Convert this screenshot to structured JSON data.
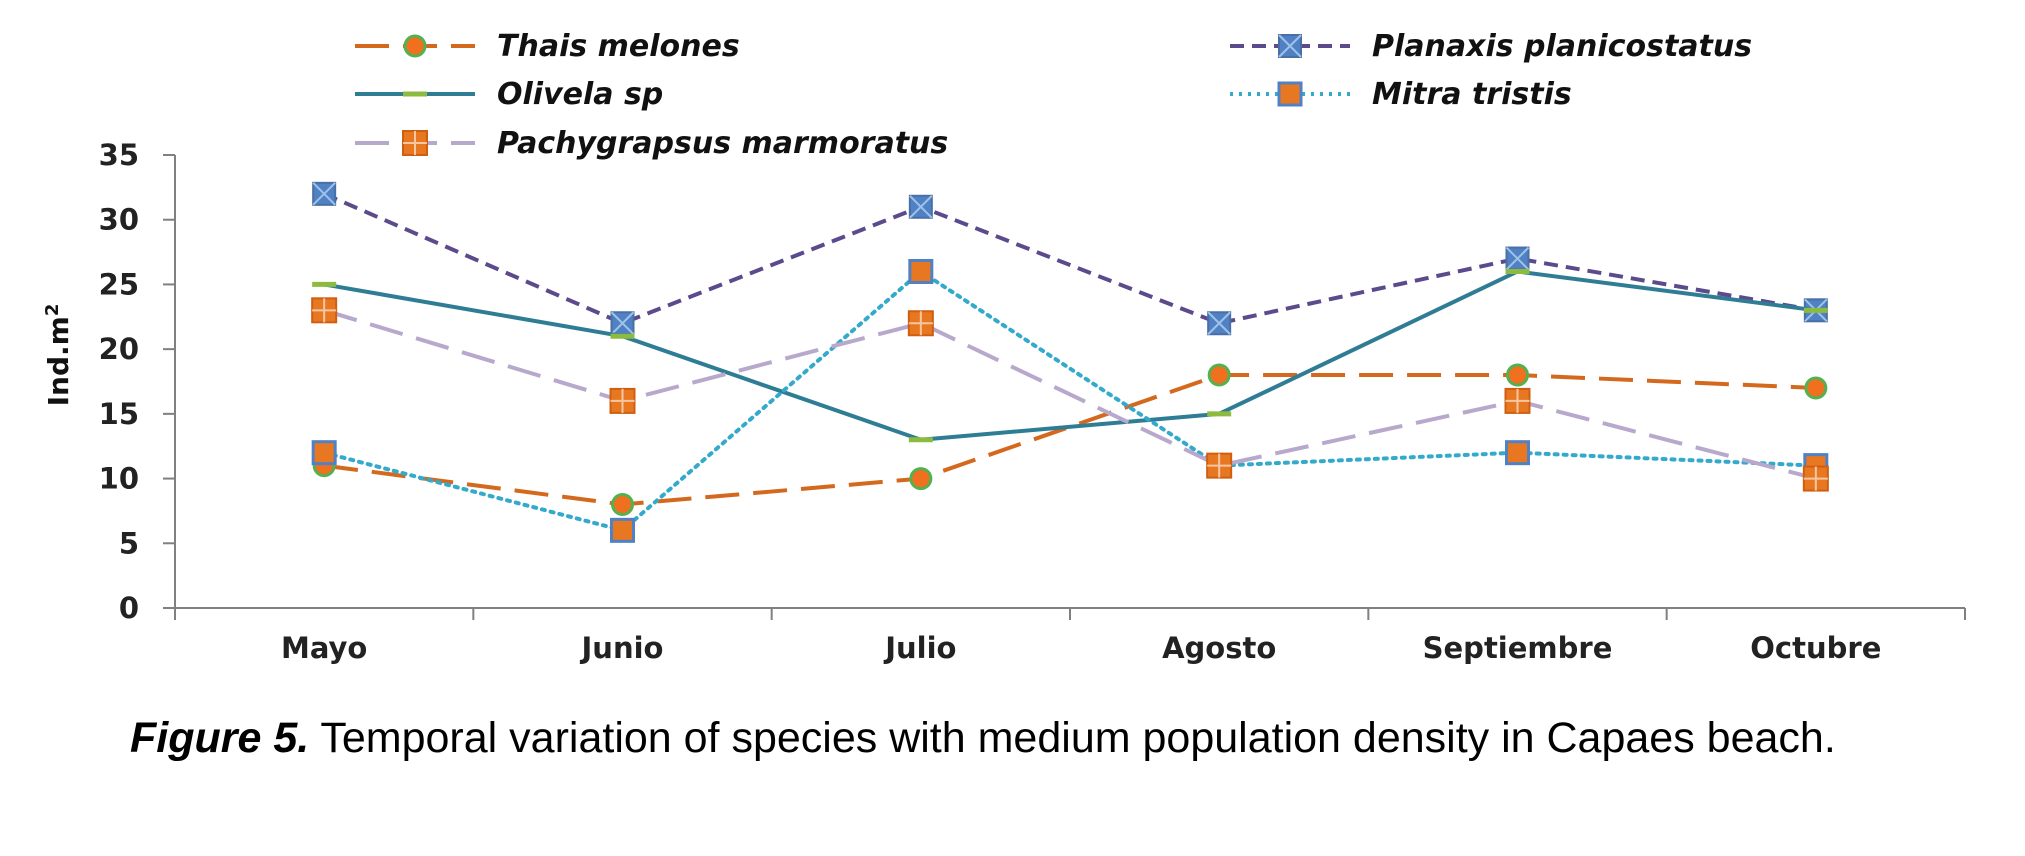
{
  "chart_data": {
    "type": "line",
    "title": "",
    "xlabel": "",
    "ylabel": "Ind.m2",
    "ylabel_main": "Ind.m",
    "ylabel_sup": "2",
    "ylim": [
      0,
      35
    ],
    "yticks": [
      0,
      5,
      10,
      15,
      20,
      25,
      30,
      35
    ],
    "ytick_labels": [
      "0",
      "5",
      "10",
      "15",
      "20",
      "25",
      "30",
      "35"
    ],
    "categories": [
      "Mayo",
      "Junio",
      "Julio",
      "Agosto",
      "Septiembre",
      "Octubre"
    ],
    "legend_position": "top",
    "series": [
      {
        "name": "Thais melones",
        "values": [
          11,
          8,
          10,
          18,
          18,
          17
        ],
        "color": "#D4691E",
        "marker_color": "#F07020",
        "marker_edge": "#55B050",
        "marker": "circle",
        "dash": "long-dash"
      },
      {
        "name": "Planaxis planicostatus",
        "values": [
          32,
          22,
          31,
          22,
          27,
          23
        ],
        "color": "#5C4A8C",
        "marker_color": "#4F81C4",
        "marker_edge": "#4A6FA5",
        "marker": "square-x",
        "dash": "dash"
      },
      {
        "name": "Olivela sp",
        "values": [
          25,
          21,
          13,
          15,
          26,
          23
        ],
        "color": "#2E7D95",
        "marker_color": "#8DBB3F",
        "marker_edge": "#8DBB3F",
        "marker": "dash",
        "dash": "solid"
      },
      {
        "name": "Mitra tristis",
        "values": [
          12,
          6,
          26,
          11,
          12,
          11
        ],
        "color": "#33AACC",
        "marker_color": "#E87722",
        "marker_edge": "#4F81C4",
        "marker": "square",
        "dash": "dot"
      },
      {
        "name": "Pachygrapsus marmoratus",
        "values": [
          23,
          16,
          22,
          11,
          16,
          10
        ],
        "color": "#B8A8CC",
        "marker_color": "#E87722",
        "marker_edge": "#D05E10",
        "marker": "square-plus",
        "dash": "long-dash"
      }
    ]
  },
  "caption": {
    "figure_label": "Figure 5.",
    "text": " Temporal variation of species with medium population density in Capaes beach."
  }
}
